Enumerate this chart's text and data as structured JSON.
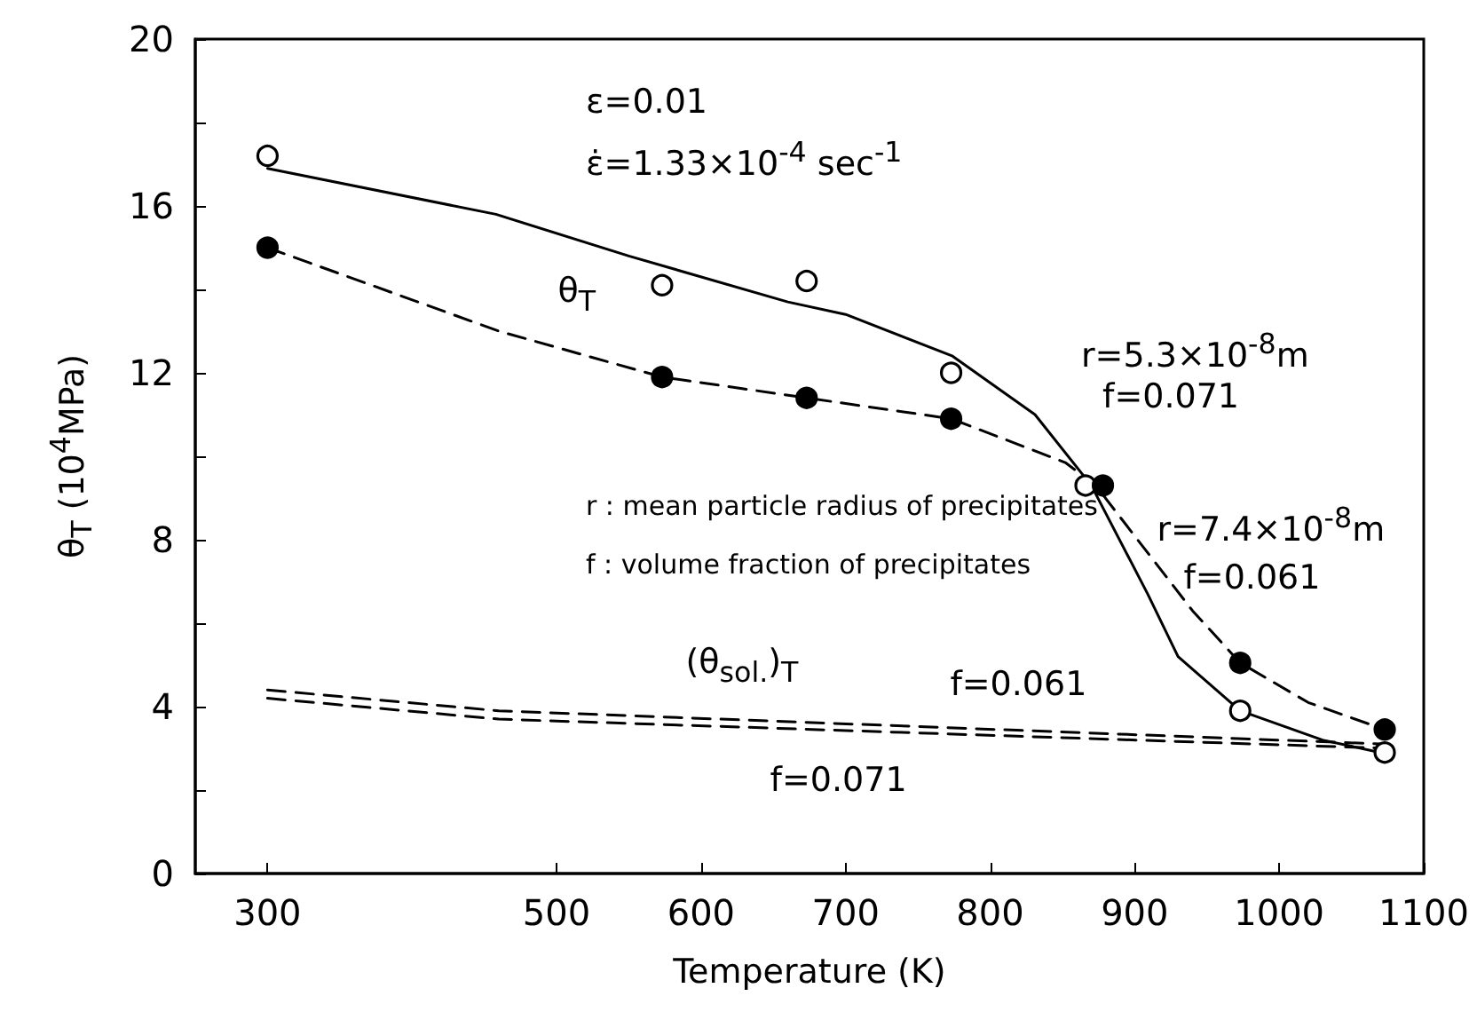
{
  "chart_data": {
    "type": "scatter",
    "xlabel": "Temperature   (K)",
    "ylabel": "θ$_{T}$   (10$^{4}$MPa)",
    "xlim": [
      250,
      1100
    ],
    "xticks": [
      300,
      500,
      600,
      700,
      800,
      900,
      1000,
      1100
    ],
    "ylim": [
      0,
      20
    ],
    "yticks": [
      0,
      {
        "value": 2,
        "label": null
      },
      4,
      {
        "value": 6,
        "label": null
      },
      8,
      {
        "value": 10,
        "label": null
      },
      12,
      {
        "value": 14,
        "label": null
      },
      16,
      {
        "value": 18,
        "label": null
      },
      20
    ],
    "grid": false,
    "series": [
      {
        "type": "line",
        "color": "#000000",
        "marker": "none",
        "line_style": "solid",
        "x": [
          300,
          458,
          550,
          660,
          700,
          774,
          831,
          870,
          909,
          930,
          973,
          1030,
          1070
        ],
        "values": [
          16.9,
          15.8,
          14.8,
          13.7,
          13.4,
          12.4,
          11.0,
          9.3,
          6.7,
          5.2,
          3.9,
          3.2,
          2.9
        ]
      },
      {
        "type": "line",
        "color": "#000000",
        "marker": "none",
        "line_style": "dashed",
        "x": [
          300,
          460,
          573,
          673,
          773,
          852,
          873,
          940,
          973,
          1020,
          1073
        ],
        "values": [
          15.0,
          13.0,
          11.9,
          11.4,
          10.9,
          9.85,
          9.3,
          6.3,
          5.05,
          4.1,
          3.45
        ]
      },
      {
        "type": "line",
        "color": "#000000",
        "marker": "none",
        "line_style": "dashed",
        "x": [
          300,
          460,
          1075
        ],
        "values": [
          4.4,
          3.9,
          3.1
        ]
      },
      {
        "type": "line",
        "color": "#000000",
        "marker": "none",
        "line_style": "dashed",
        "x": [
          300,
          460,
          1075
        ],
        "values": [
          4.2,
          3.7,
          3.0
        ]
      },
      {
        "color": "#ffffff",
        "marker": "circle",
        "x": [
          300,
          573,
          673,
          773,
          866,
          973,
          1073
        ],
        "values": [
          17.2,
          14.1,
          14.2,
          12.0,
          9.3,
          3.9,
          2.9
        ]
      },
      {
        "color": "#000000",
        "marker": "circle",
        "x": [
          300,
          573,
          673,
          773,
          878,
          973,
          1073
        ],
        "values": [
          15.0,
          11.9,
          11.4,
          10.9,
          9.3,
          5.05,
          3.45
        ]
      }
    ],
    "annotations": [
      "ε=0.01",
      "ε̇=1.33×10$^{-4}$ sec$^{-1}$",
      {
        "text": "θ$_{T}$",
        "x": 550,
        "y": 14.8
      },
      {
        "text": "r=5.3×10$^{-8}$m",
        "x": 831,
        "y": 11.0
      },
      {
        "text": "f=0.071",
        "x": 831,
        "y": 11.0
      },
      "r : mean particle radius of precipitates",
      "f : volume fraction of precipitates",
      {
        "text": "r=7.4×10$^{-8}$m",
        "x": 940,
        "y": 6.3
      },
      {
        "text": "f=0.061",
        "x": 940,
        "y": 6.3
      },
      {
        "text": "(θ$_{sol.}$)$_{T}$",
        "x": 620,
        "y": 3.8
      },
      {
        "text": "f=0.061",
        "x": 760,
        "y": 3.5
      },
      {
        "text": "f=0.071",
        "x": 660,
        "y": 3.4
      }
    ]
  }
}
